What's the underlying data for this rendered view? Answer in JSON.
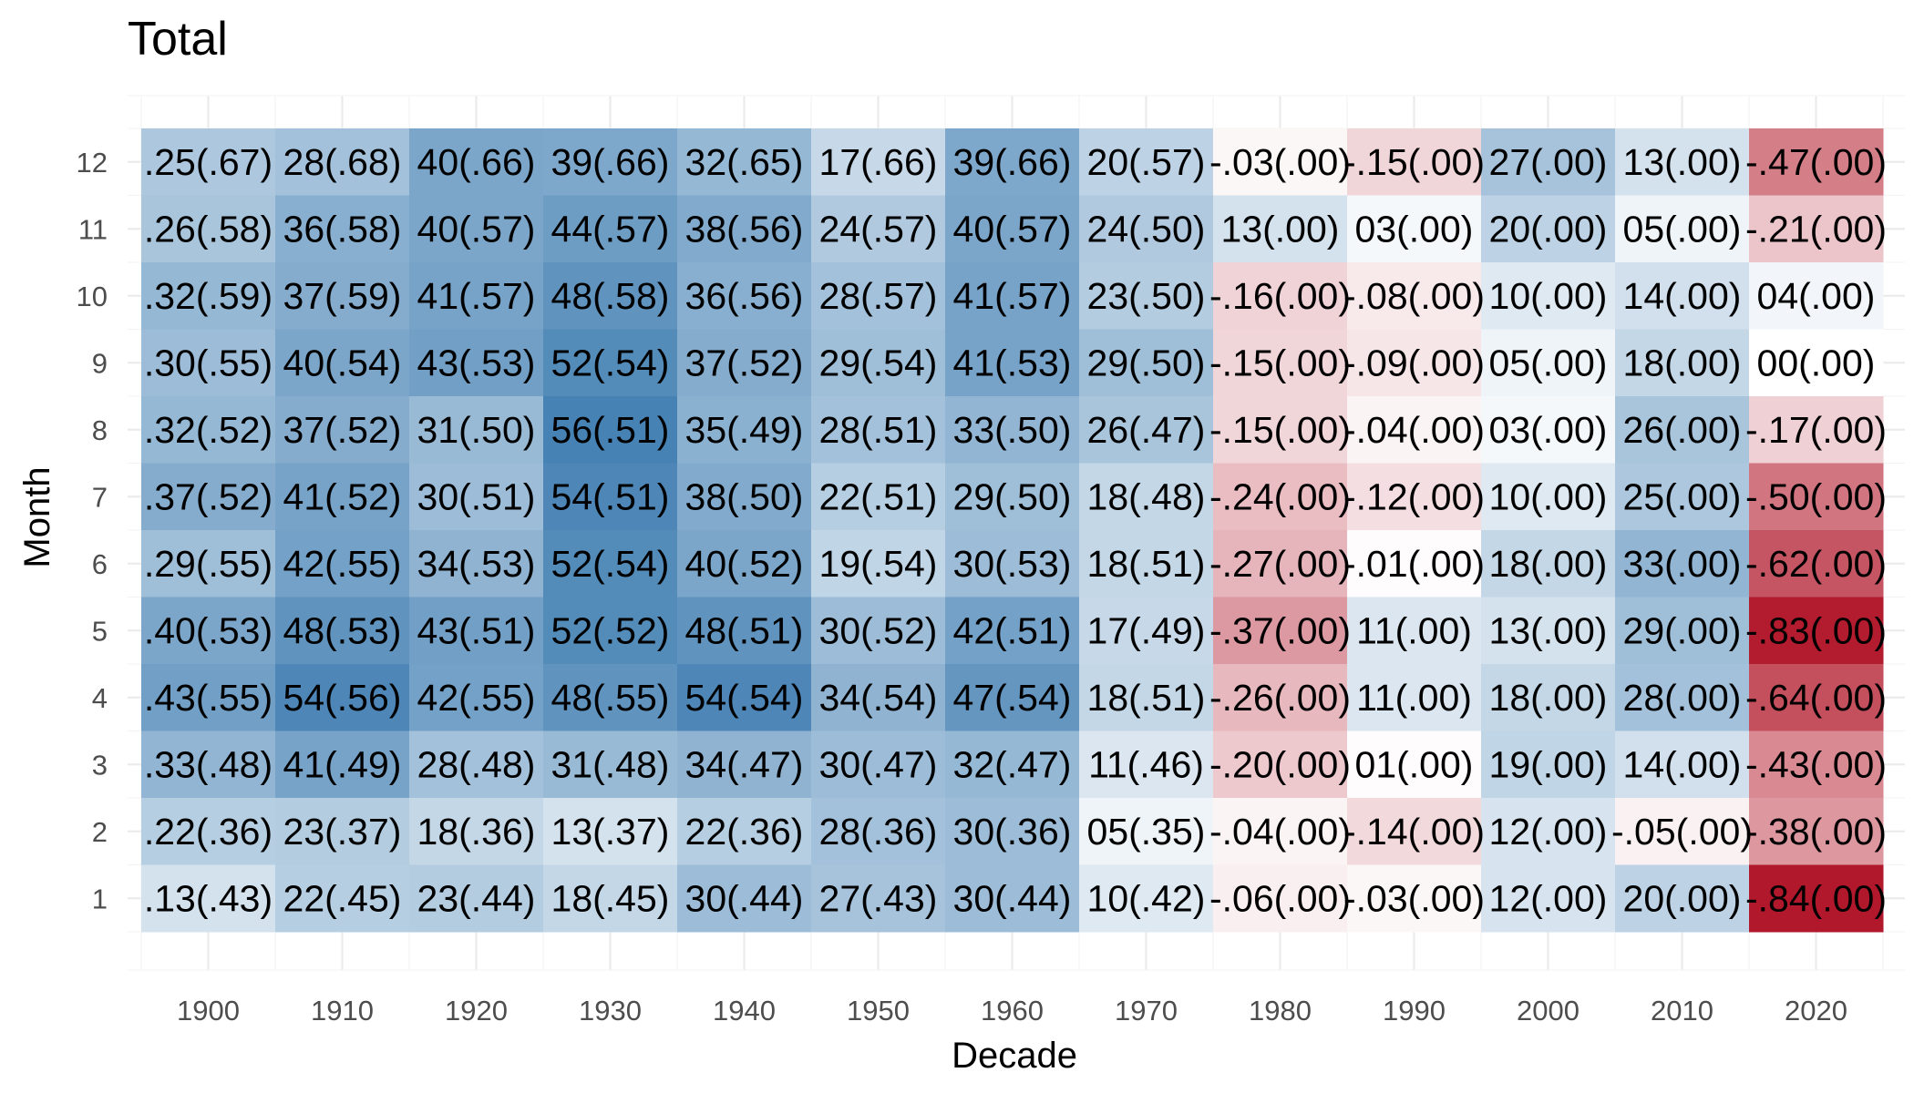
{
  "chart_data": {
    "type": "heatmap",
    "title": "Total",
    "xlabel": "Decade",
    "ylabel": "Month",
    "x": [
      "1900",
      "1910",
      "1920",
      "1930",
      "1940",
      "1950",
      "1960",
      "1970",
      "1980",
      "1990",
      "2000",
      "2010",
      "2020"
    ],
    "y": [
      "1",
      "2",
      "3",
      "4",
      "5",
      "6",
      "7",
      "8",
      "9",
      "10",
      "11",
      "12"
    ],
    "grid": true,
    "legend": "none",
    "colors": {
      "low": "#b2182b",
      "mid": "#ffffff",
      "high": "#4682b4"
    },
    "value_range": [
      -0.84,
      0.56
    ],
    "values": [
      [
        -0.25,
        -0.28,
        -0.4,
        -0.39,
        -0.32,
        -0.17,
        -0.39,
        -0.2,
        0.03,
        0.15,
        -0.27,
        -0.13,
        0.47
      ],
      [
        -0.26,
        -0.36,
        -0.4,
        -0.44,
        -0.38,
        -0.24,
        -0.4,
        -0.24,
        -0.13,
        -0.03,
        -0.2,
        -0.05,
        0.21
      ],
      [
        -0.32,
        -0.37,
        -0.41,
        -0.48,
        -0.36,
        -0.28,
        -0.41,
        -0.23,
        0.16,
        0.08,
        -0.1,
        -0.14,
        -0.04
      ],
      [
        -0.3,
        -0.4,
        -0.43,
        -0.52,
        -0.37,
        -0.29,
        -0.41,
        -0.29,
        0.15,
        0.09,
        -0.05,
        -0.18,
        0.0
      ],
      [
        -0.32,
        -0.37,
        -0.31,
        -0.56,
        -0.35,
        -0.28,
        -0.33,
        -0.26,
        0.15,
        0.04,
        -0.03,
        -0.26,
        0.17
      ],
      [
        -0.37,
        -0.41,
        -0.3,
        -0.54,
        -0.38,
        -0.22,
        -0.29,
        -0.18,
        0.24,
        0.12,
        -0.1,
        -0.25,
        0.5
      ],
      [
        -0.29,
        -0.42,
        -0.34,
        -0.52,
        -0.4,
        -0.19,
        -0.3,
        -0.18,
        0.27,
        0.01,
        -0.18,
        -0.33,
        0.62
      ],
      [
        -0.4,
        -0.48,
        -0.43,
        -0.52,
        -0.48,
        -0.3,
        -0.42,
        -0.17,
        0.37,
        -0.11,
        -0.13,
        -0.29,
        0.83
      ],
      [
        -0.43,
        -0.54,
        -0.42,
        -0.48,
        -0.54,
        -0.34,
        -0.47,
        -0.18,
        0.26,
        -0.11,
        -0.18,
        -0.28,
        0.64
      ],
      [
        -0.33,
        -0.41,
        -0.28,
        -0.31,
        -0.34,
        -0.3,
        -0.32,
        -0.11,
        0.2,
        0.01,
        -0.19,
        -0.14,
        0.43
      ],
      [
        -0.22,
        -0.23,
        -0.18,
        -0.13,
        -0.22,
        -0.28,
        -0.3,
        -0.05,
        0.04,
        0.14,
        -0.12,
        0.05,
        0.38
      ],
      [
        -0.13,
        -0.22,
        -0.23,
        -0.18,
        -0.3,
        -0.27,
        -0.3,
        -0.1,
        0.06,
        0.03,
        -0.12,
        -0.2,
        0.84
      ]
    ],
    "labels": [
      [
        ".25(.67)",
        "28(.68)",
        "40(.66)",
        "39(.66)",
        "32(.65)",
        "17(.66)",
        "39(.66)",
        "20(.57)",
        "-.03(.00)",
        "-.15(.00)",
        "27(.00)",
        "13(.00)",
        "-.47(.00)"
      ],
      [
        ".26(.58)",
        "36(.58)",
        "40(.57)",
        "44(.57)",
        "38(.56)",
        "24(.57)",
        "40(.57)",
        "24(.50)",
        "13(.00)",
        "03(.00)",
        "20(.00)",
        "05(.00)",
        "-.21(.00)"
      ],
      [
        ".32(.59)",
        "37(.59)",
        "41(.57)",
        "48(.58)",
        "36(.56)",
        "28(.57)",
        "41(.57)",
        "23(.50)",
        "-.16(.00)",
        "-.08(.00)",
        "10(.00)",
        "14(.00)",
        "04(.00)"
      ],
      [
        ".30(.55)",
        "40(.54)",
        "43(.53)",
        "52(.54)",
        "37(.52)",
        "29(.54)",
        "41(.53)",
        "29(.50)",
        "-.15(.00)",
        "-.09(.00)",
        "05(.00)",
        "18(.00)",
        "00(.00)"
      ],
      [
        ".32(.52)",
        "37(.52)",
        "31(.50)",
        "56(.51)",
        "35(.49)",
        "28(.51)",
        "33(.50)",
        "26(.47)",
        "-.15(.00)",
        "-.04(.00)",
        "03(.00)",
        "26(.00)",
        "-.17(.00)"
      ],
      [
        ".37(.52)",
        "41(.52)",
        "30(.51)",
        "54(.51)",
        "38(.50)",
        "22(.51)",
        "29(.50)",
        "18(.48)",
        "-.24(.00)",
        "-.12(.00)",
        "10(.00)",
        "25(.00)",
        "-.50(.00)"
      ],
      [
        ".29(.55)",
        "42(.55)",
        "34(.53)",
        "52(.54)",
        "40(.52)",
        "19(.54)",
        "30(.53)",
        "18(.51)",
        "-.27(.00)",
        "-.01(.00)",
        "18(.00)",
        "33(.00)",
        "-.62(.00)"
      ],
      [
        ".40(.53)",
        "48(.53)",
        "43(.51)",
        "52(.52)",
        "48(.51)",
        "30(.52)",
        "42(.51)",
        "17(.49)",
        "-.37(.00)",
        "11(.00)",
        "13(.00)",
        "29(.00)",
        "-.83(.00)"
      ],
      [
        ".43(.55)",
        "54(.56)",
        "42(.55)",
        "48(.55)",
        "54(.54)",
        "34(.54)",
        "47(.54)",
        "18(.51)",
        "-.26(.00)",
        "11(.00)",
        "18(.00)",
        "28(.00)",
        "-.64(.00)"
      ],
      [
        ".33(.48)",
        "41(.49)",
        "28(.48)",
        "31(.48)",
        "34(.47)",
        "30(.47)",
        "32(.47)",
        "11(.46)",
        "-.20(.00)",
        "01(.00)",
        "19(.00)",
        "14(.00)",
        "-.43(.00)"
      ],
      [
        ".22(.36)",
        "23(.37)",
        "18(.36)",
        "13(.37)",
        "22(.36)",
        "28(.36)",
        "30(.36)",
        "05(.35)",
        "-.04(.00)",
        "-.14(.00)",
        "12(.00)",
        "-.05(.00)",
        "-.38(.00)"
      ],
      [
        ".13(.43)",
        "22(.45)",
        "23(.44)",
        "18(.45)",
        "30(.44)",
        "27(.43)",
        "30(.44)",
        "10(.42)",
        "-.06(.00)",
        "-.03(.00)",
        "12(.00)",
        "20(.00)",
        "-.84(.00)"
      ]
    ]
  }
}
